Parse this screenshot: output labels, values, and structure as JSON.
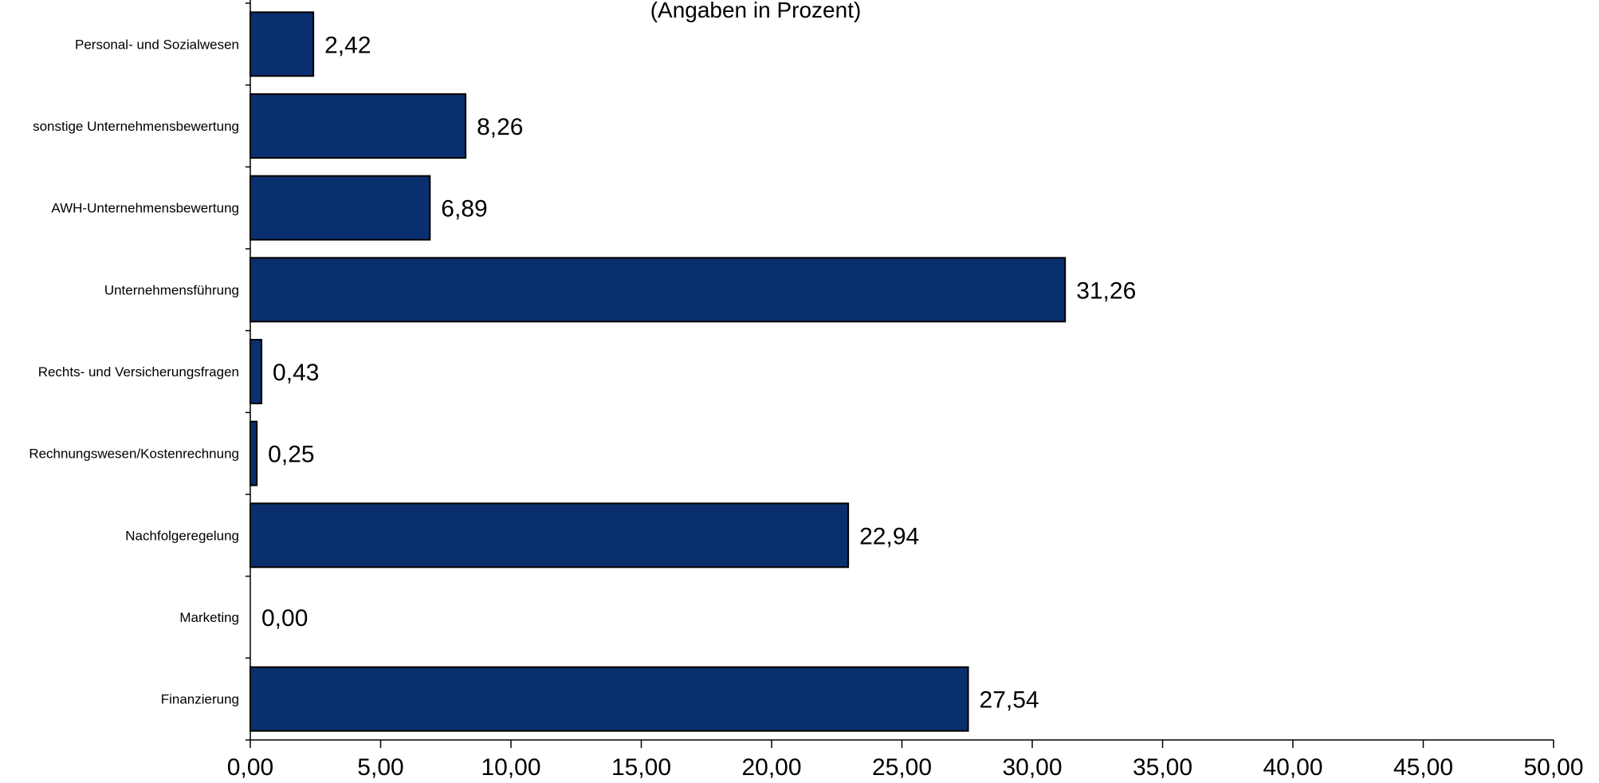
{
  "chart_data": {
    "type": "bar",
    "orientation": "horizontal",
    "subtitle": "(Angaben in Prozent)",
    "categories": [
      "Personal- und Sozialwesen",
      "sonstige Unternehmensbewertung",
      "AWH-Unternehmensbewertung",
      "Unternehmensführung",
      "Rechts- und Versicherungsfragen",
      "Rechnungswesen/Kostenrechnung",
      "Nachfolgeregelung",
      "Marketing",
      "Finanzierung"
    ],
    "values": [
      2.42,
      8.26,
      6.89,
      31.26,
      0.43,
      0.25,
      22.94,
      0.0,
      27.54
    ],
    "value_labels": [
      "2,42",
      "8,26",
      "6,89",
      "31,26",
      "0,43",
      "0,25",
      "22,94",
      "0,00",
      "27,54"
    ],
    "xlim": [
      0,
      50
    ],
    "x_ticks": [
      0,
      5,
      10,
      15,
      20,
      25,
      30,
      35,
      40,
      45,
      50
    ],
    "x_tick_labels": [
      "0,00",
      "5,00",
      "10,00",
      "15,00",
      "20,00",
      "25,00",
      "30,00",
      "35,00",
      "40,00",
      "45,00",
      "50,00"
    ],
    "bar_color": "#0a2f6e",
    "grid": false
  }
}
